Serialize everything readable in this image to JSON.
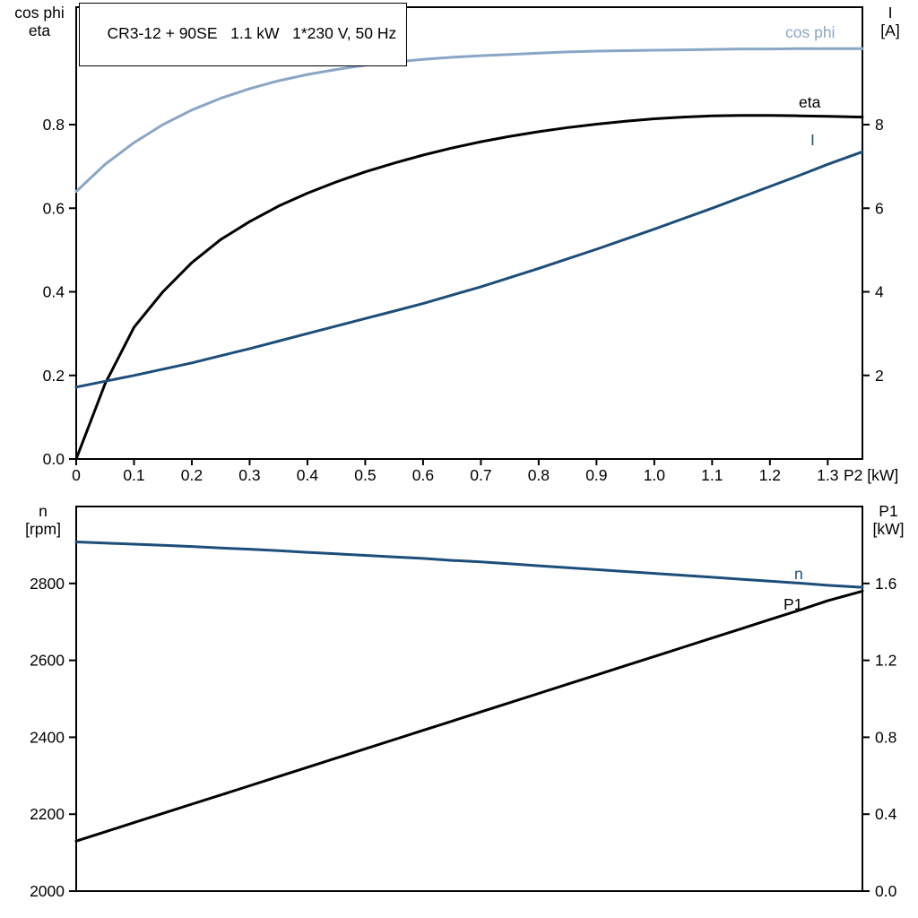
{
  "colors": {
    "black": "#000000",
    "light_blue": "#8aa6c6",
    "dark_blue": "#1c4e79",
    "axis": "#000000",
    "background": "#ffffff"
  },
  "chart_data": [
    {
      "type": "line",
      "panel": "top",
      "title": "CR3-12 + 90SE   1.1 kW   1*230 V, 50 Hz",
      "x_axis_label": "P2 [kW]",
      "x_range": [
        0,
        1.36
      ],
      "x_tick_values": [
        0,
        0.1,
        0.2,
        0.3,
        0.4,
        0.5,
        0.6,
        0.7,
        0.8,
        0.9,
        1.0,
        1.1,
        1.2,
        1.3
      ],
      "x_tick_labels": [
        "0",
        "0.1",
        "0.2",
        "0.3",
        "0.4",
        "0.5",
        "0.6",
        "0.7",
        "0.8",
        "0.9",
        "1.0",
        "1.1",
        "1.2",
        "1.3"
      ],
      "left_axis": {
        "title_lines": [
          "cos phi",
          "eta"
        ],
        "range": [
          0,
          1.081
        ],
        "tick_values": [
          0,
          0.2,
          0.4,
          0.6,
          0.8
        ],
        "tick_labels": [
          "0.0",
          "0.2",
          "0.4",
          "0.6",
          "0.8"
        ]
      },
      "right_axis": {
        "title_lines": [
          "I",
          "[A]"
        ],
        "range": [
          0,
          10.81
        ],
        "tick_values": [
          2,
          4,
          6,
          8
        ],
        "tick_labels": [
          "2",
          "4",
          "6",
          "8"
        ]
      },
      "grid": false,
      "x": [
        0,
        0.05,
        0.1,
        0.15,
        0.2,
        0.25,
        0.3,
        0.35,
        0.4,
        0.45,
        0.5,
        0.55,
        0.6,
        0.65,
        0.7,
        0.75,
        0.8,
        0.85,
        0.9,
        0.95,
        1.0,
        1.05,
        1.1,
        1.15,
        1.2,
        1.25,
        1.3,
        1.36
      ],
      "series": [
        {
          "name": "cos phi",
          "axis": "left",
          "color": "light_blue",
          "values": [
            0.64,
            0.705,
            0.757,
            0.8,
            0.835,
            0.863,
            0.886,
            0.905,
            0.92,
            0.932,
            0.942,
            0.95,
            0.956,
            0.961,
            0.965,
            0.968,
            0.971,
            0.974,
            0.976,
            0.977,
            0.978,
            0.979,
            0.98,
            0.981,
            0.981,
            0.982,
            0.982,
            0.982
          ]
        },
        {
          "name": "eta",
          "axis": "left",
          "color": "black",
          "values": [
            0,
            0.18,
            0.315,
            0.4,
            0.47,
            0.525,
            0.568,
            0.605,
            0.636,
            0.663,
            0.687,
            0.708,
            0.727,
            0.744,
            0.759,
            0.772,
            0.783,
            0.793,
            0.801,
            0.808,
            0.814,
            0.818,
            0.821,
            0.822,
            0.822,
            0.821,
            0.82,
            0.818
          ]
        },
        {
          "name": "I",
          "axis": "right",
          "color": "dark_blue",
          "values": [
            1.72,
            1.86,
            2.0,
            2.15,
            2.3,
            2.47,
            2.64,
            2.82,
            3.0,
            3.18,
            3.36,
            3.54,
            3.72,
            3.92,
            4.12,
            4.34,
            4.56,
            4.79,
            5.02,
            5.26,
            5.5,
            5.75,
            6.0,
            6.26,
            6.52,
            6.78,
            7.05,
            7.35
          ]
        }
      ]
    },
    {
      "type": "line",
      "panel": "bottom",
      "x_range": [
        0,
        1.36
      ],
      "x_tick_values": [],
      "x_tick_labels": [],
      "left_axis": {
        "title_lines": [
          "n",
          "[rpm]"
        ],
        "range": [
          2000,
          3000
        ],
        "tick_values": [
          2000,
          2200,
          2400,
          2600,
          2800
        ],
        "tick_labels": [
          "2000",
          "2200",
          "2400",
          "2600",
          "2800"
        ]
      },
      "right_axis": {
        "title_lines": [
          "P1",
          "[kW]"
        ],
        "range": [
          0,
          2.0
        ],
        "tick_values": [
          0,
          0.4,
          0.8,
          1.2,
          1.6
        ],
        "tick_labels": [
          "0.0",
          "0.4",
          "0.8",
          "1.2",
          "1.6"
        ]
      },
      "grid": false,
      "x": [
        0,
        0.05,
        0.1,
        0.15,
        0.2,
        0.25,
        0.3,
        0.35,
        0.4,
        0.45,
        0.5,
        0.55,
        0.6,
        0.65,
        0.7,
        0.75,
        0.8,
        0.85,
        0.9,
        0.95,
        1.0,
        1.05,
        1.1,
        1.15,
        1.2,
        1.25,
        1.3,
        1.36
      ],
      "series": [
        {
          "name": "n",
          "axis": "left",
          "color": "dark_blue",
          "values": [
            2908,
            2905,
            2902,
            2899,
            2896,
            2892,
            2889,
            2885,
            2881,
            2877,
            2873,
            2869,
            2865,
            2860,
            2856,
            2851,
            2846,
            2841,
            2836,
            2831,
            2826,
            2821,
            2816,
            2811,
            2806,
            2801,
            2795,
            2790
          ]
        },
        {
          "name": "P1",
          "axis": "right",
          "color": "black",
          "values": [
            0.26,
            0.308,
            0.356,
            0.404,
            0.452,
            0.5,
            0.548,
            0.596,
            0.644,
            0.692,
            0.74,
            0.788,
            0.836,
            0.884,
            0.932,
            0.98,
            1.028,
            1.076,
            1.124,
            1.172,
            1.22,
            1.268,
            1.316,
            1.364,
            1.412,
            1.46,
            1.51,
            1.56
          ]
        }
      ]
    }
  ]
}
